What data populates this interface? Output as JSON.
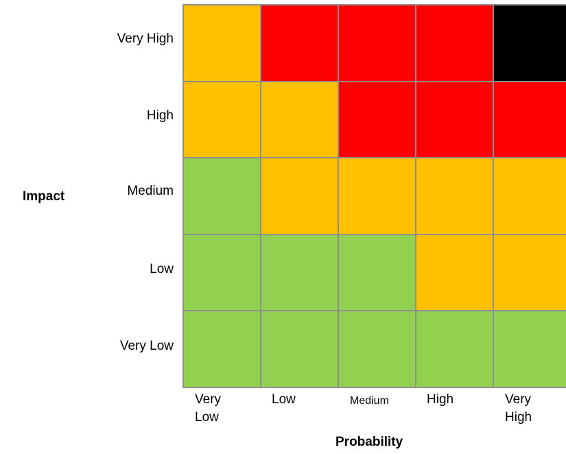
{
  "chart_data": {
    "type": "heatmap",
    "xlabel": "Probability",
    "ylabel": "Impact",
    "x_categories": [
      "Very\nLow",
      "Low",
      "Medium",
      "High",
      "Very\nHigh"
    ],
    "y_categories": [
      "Very High",
      "High",
      "Medium",
      "Low",
      "Very Low"
    ],
    "palette": {
      "green": "#92d050",
      "amber": "#ffc000",
      "red": "#ff0000",
      "black": "#000000"
    },
    "cells": [
      [
        "amber",
        "red",
        "red",
        "red",
        "black"
      ],
      [
        "amber",
        "amber",
        "red",
        "red",
        "red"
      ],
      [
        "green",
        "amber",
        "amber",
        "amber",
        "amber"
      ],
      [
        "green",
        "green",
        "green",
        "amber",
        "amber"
      ],
      [
        "green",
        "green",
        "green",
        "green",
        "green"
      ]
    ]
  }
}
